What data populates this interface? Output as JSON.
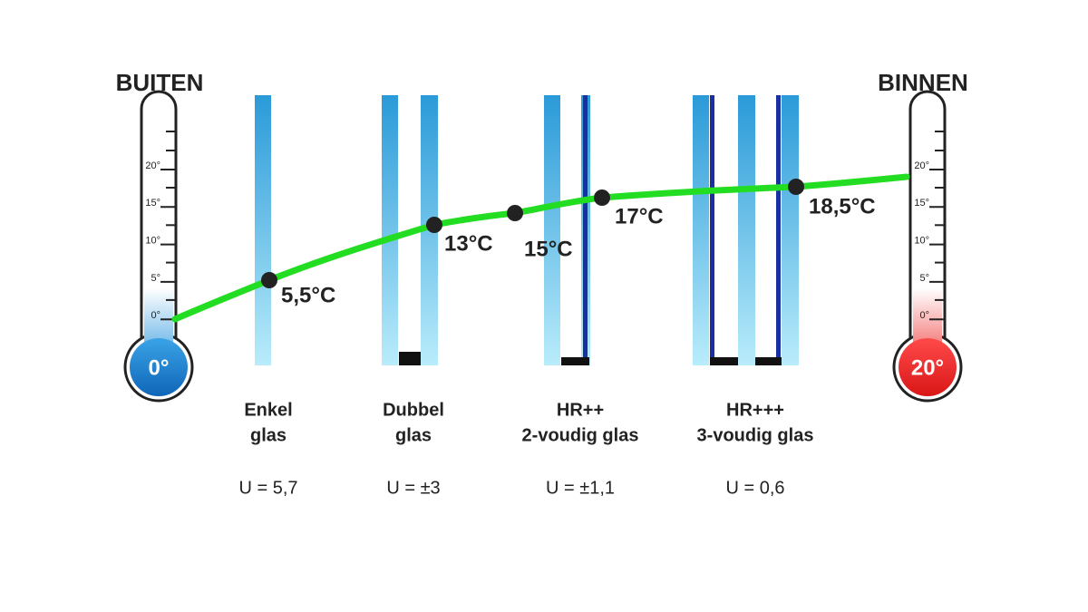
{
  "outside": {
    "label": "BUITEN",
    "bulb": "0°"
  },
  "inside": {
    "label": "BINNEN",
    "bulb": "20°"
  },
  "scale": [
    "20°",
    "15°",
    "10°",
    "5°",
    "0°"
  ],
  "points": [
    "5,5°C",
    "13°C",
    "15°C",
    "17°C",
    "18,5°C"
  ],
  "glazing": [
    {
      "name": [
        "Enkel",
        "glas"
      ],
      "u": "U = 5,7"
    },
    {
      "name": [
        "Dubbel",
        "glas"
      ],
      "u": "U = ±3"
    },
    {
      "name": [
        "HR++",
        "2-voudig glas"
      ],
      "u": "U = ±1,1"
    },
    {
      "name": [
        "HR+++",
        "3-voudig glas"
      ],
      "u": "U = 0,6"
    }
  ]
}
